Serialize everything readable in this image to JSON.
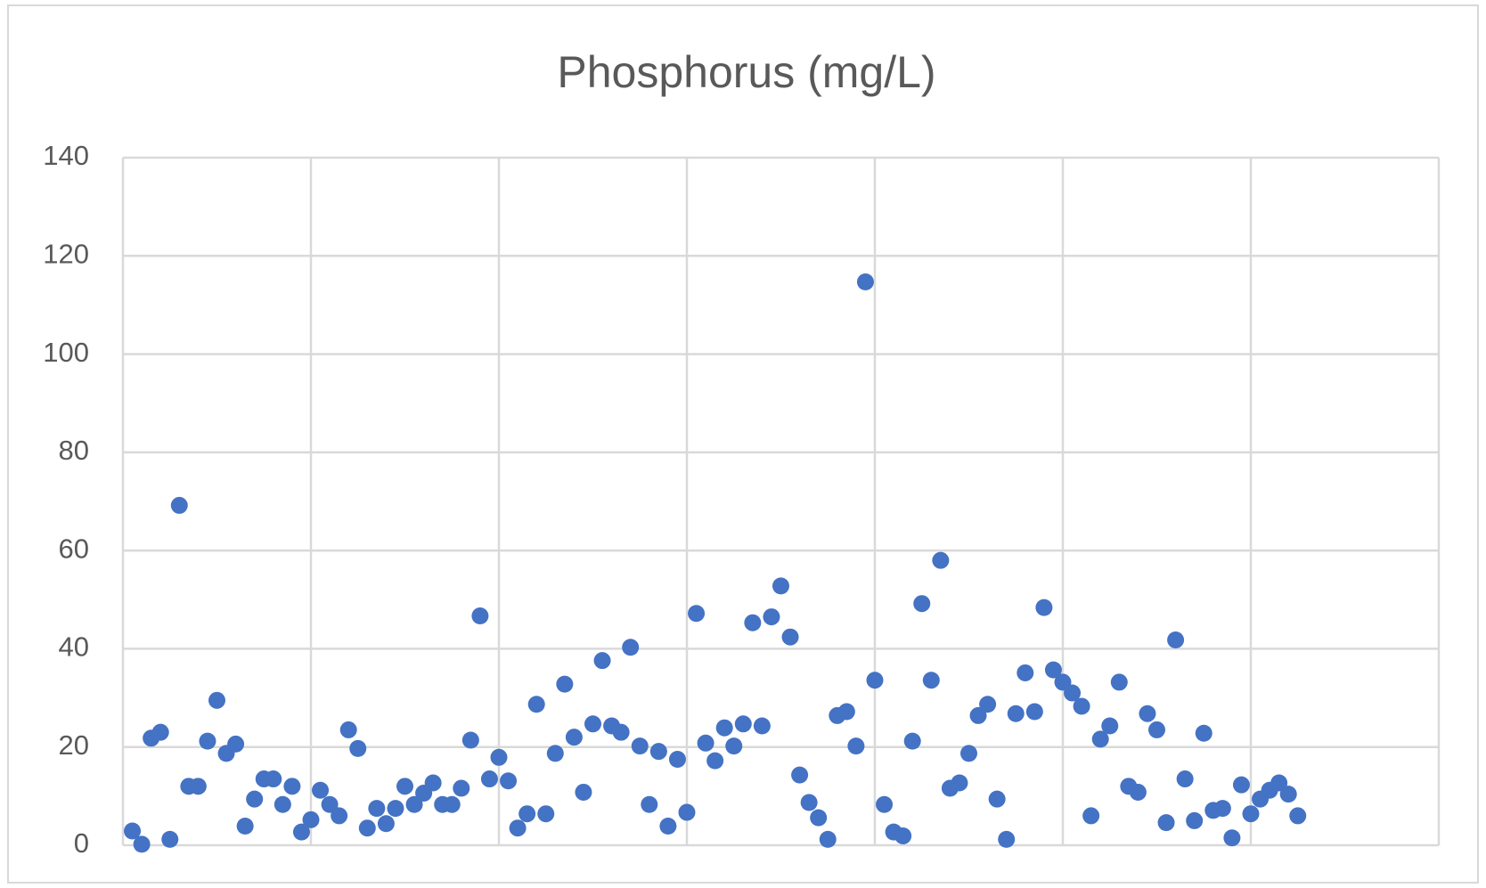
{
  "chart_data": {
    "type": "scatter",
    "title": "Phosphorus (mg/L)",
    "color": "#4472c4",
    "grid": true,
    "x": [
      1,
      2,
      3,
      4,
      5,
      6,
      7,
      8,
      9,
      10,
      11,
      12,
      13,
      14,
      15,
      16,
      17,
      18,
      19,
      20,
      21,
      22,
      23,
      24,
      25,
      26,
      27,
      28,
      29,
      30,
      31,
      32,
      33,
      34,
      35,
      36,
      37,
      38,
      39,
      40,
      41,
      42,
      43,
      44,
      45,
      46,
      47,
      48,
      49,
      50,
      51,
      52,
      53,
      54,
      55,
      56,
      57,
      58,
      59,
      60,
      61,
      62,
      63,
      64,
      65,
      66,
      67,
      68,
      69,
      70,
      71,
      72,
      73,
      74,
      75,
      76,
      77,
      78,
      79,
      80,
      81,
      82,
      83,
      84,
      85,
      86,
      87,
      88,
      89,
      90,
      91,
      92,
      93,
      94,
      95,
      96,
      97,
      98,
      99,
      100,
      101,
      102,
      103,
      104,
      105,
      106,
      107,
      108,
      109,
      110,
      111,
      112,
      113,
      114,
      115,
      116,
      117,
      118,
      119,
      120,
      121,
      122,
      123,
      124,
      125
    ],
    "values": [
      2.9,
      0.2,
      21.8,
      23,
      1.2,
      69.2,
      12,
      12,
      21.2,
      29.5,
      18.7,
      20.6,
      3.9,
      9.4,
      13.5,
      13.5,
      8.3,
      12,
      2.7,
      5.2,
      11.2,
      8.3,
      6,
      23.5,
      19.7,
      3.5,
      7.5,
      4.4,
      7.5,
      12,
      8.3,
      10.6,
      12.7,
      8.3,
      8.3,
      11.6,
      21.4,
      46.7,
      13.5,
      17.9,
      13.1,
      3.5,
      6.4,
      28.7,
      6.4,
      18.7,
      32.8,
      22,
      10.8,
      24.7,
      37.6,
      24.3,
      23,
      40.3,
      20.2,
      8.3,
      19.1,
      3.9,
      17.5,
      6.7,
      47.2,
      20.8,
      17.2,
      23.9,
      20.2,
      24.7,
      45.3,
      24.3,
      46.5,
      52.8,
      42.4,
      14.3,
      8.7,
      5.6,
      1.2,
      26.4,
      27.2,
      20.2,
      114.7,
      33.6,
      8.3,
      2.7,
      1.9,
      21.2,
      49.2,
      33.6,
      58,
      11.6,
      12.7,
      18.7,
      26.4,
      28.7,
      9.4,
      1.2,
      26.8,
      35.1,
      27.2,
      48.4,
      35.7,
      33.2,
      31,
      28.3,
      6,
      21.6,
      24.3,
      33.2,
      12,
      10.8,
      26.8,
      23.5,
      4.6,
      41.8,
      13.5,
      5,
      22.8,
      7.1,
      7.5,
      1.5,
      12.3,
      6.4,
      9.4,
      11.2,
      12.7,
      10.4,
      6
    ],
    "xlim": [
      0,
      140
    ],
    "xticks": [
      0,
      20,
      40,
      60,
      80,
      100,
      120,
      140
    ],
    "ylim": [
      0,
      140
    ],
    "yticks": [
      0,
      20,
      40,
      60,
      80,
      100,
      120,
      140
    ]
  }
}
